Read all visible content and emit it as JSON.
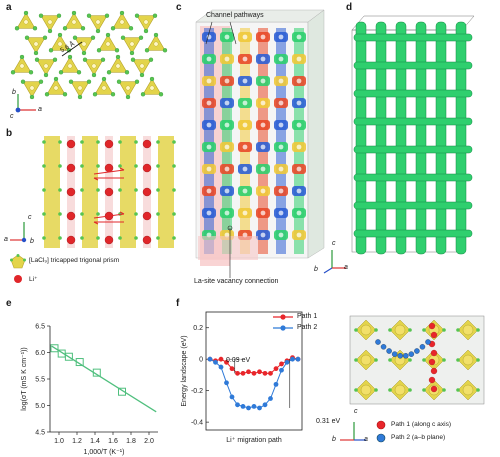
{
  "panels": {
    "a": {
      "label": "a",
      "distance": "5.6 Å",
      "axis_b": "b",
      "axis_a": "a",
      "axis_c": "c"
    },
    "b": {
      "label": "b",
      "axis_c": "c",
      "axis_a": "a",
      "axis_b": "b",
      "legend_prism": "[LaCl₉] tricapped trigonal prism",
      "legend_li": "Li⁺"
    },
    "c": {
      "label": "c",
      "callout_top": "Channel pathways",
      "callout_bottom": "La-site vacancy connection",
      "axis_c": "c",
      "axis_b": "b",
      "axis_a": "a"
    },
    "d": {
      "label": "d"
    },
    "e": {
      "label": "e",
      "ylabel": "log(σT (mS K cm⁻¹))",
      "xlabel": "1,000/T (K⁻¹)"
    },
    "f": {
      "label": "f",
      "ylabel": "Energy landscape (eV)",
      "xlabel": "Li⁺ migration path",
      "annot_small": "0.09 eV",
      "annot_big": "0.31 eV",
      "legend_path1": "Path 1 (along c axis)",
      "legend_path2": "Path 2 (a–b plane)",
      "axis_c": "c",
      "axis_b": "b",
      "axis_a": "a"
    }
  },
  "colors": {
    "prism": "#e3d44a",
    "chloride": "#57c451",
    "lithium": "#e0262a",
    "isosurface": "#2fcf6e",
    "path1": "#e8262b",
    "path2": "#2f7ad8",
    "fit_line": "#4fbf7d"
  },
  "chart_data": [
    {
      "type": "scatter",
      "panel": "e",
      "xlabel": "1,000/T (K⁻¹)",
      "ylabel": "log(σT (mS K cm⁻¹))",
      "xlim": [
        0.9,
        2.1
      ],
      "ylim": [
        4.5,
        6.5
      ],
      "xticks": [
        1.0,
        1.2,
        1.4,
        1.6,
        1.8,
        2.0
      ],
      "xtick_labels": [
        "1.0",
        "1.2",
        "1.4",
        "1.6",
        "1.8",
        "2.0"
      ],
      "yticks": [
        4.5,
        5.0,
        5.5,
        6.0,
        6.5
      ],
      "ytick_labels": [
        "4.5",
        "5.0",
        "5.5",
        "6.0",
        "6.5"
      ],
      "points": {
        "x": [
          0.95,
          1.03,
          1.11,
          1.23,
          1.42,
          1.7
        ],
        "y": [
          6.08,
          5.98,
          5.92,
          5.82,
          5.62,
          5.26
        ]
      },
      "fit": {
        "x": [
          0.92,
          2.08
        ],
        "y": [
          6.12,
          4.88
        ]
      }
    },
    {
      "type": "line",
      "panel": "f",
      "xlabel": "Li⁺ migration path",
      "ylabel": "Energy landscape (eV)",
      "ylim": [
        -0.45,
        0.3
      ],
      "yticks": [
        0.2,
        0,
        -0.2,
        -0.4
      ],
      "ytick_labels": [
        "0.2",
        "0",
        "-0.2",
        "-0.4"
      ],
      "series": [
        {
          "name": "Path 1",
          "x": [
            0,
            1,
            2,
            3,
            4,
            5,
            6,
            7,
            8,
            9,
            10,
            11,
            12,
            13,
            14,
            15,
            16
          ],
          "y": [
            0,
            -0.01,
            0.0,
            -0.02,
            -0.06,
            -0.09,
            -0.09,
            -0.08,
            -0.09,
            -0.08,
            -0.09,
            -0.09,
            -0.06,
            -0.03,
            -0.01,
            0.01,
            0.0
          ]
        },
        {
          "name": "Path 2",
          "x": [
            0,
            1,
            2,
            3,
            4,
            5,
            6,
            7,
            8,
            9,
            10,
            11,
            12,
            13,
            14,
            15,
            16
          ],
          "y": [
            0,
            -0.02,
            -0.05,
            -0.15,
            -0.24,
            -0.29,
            -0.3,
            -0.31,
            -0.3,
            -0.31,
            -0.29,
            -0.25,
            -0.16,
            -0.07,
            -0.02,
            0.0,
            0.0
          ]
        }
      ]
    }
  ]
}
